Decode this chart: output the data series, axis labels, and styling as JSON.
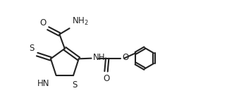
{
  "bg_color": "#ffffff",
  "line_color": "#222222",
  "line_width": 1.5,
  "font_size": 8.5,
  "font_color": "#222222",
  "figsize": [
    3.22,
    1.56
  ],
  "dpi": 100,
  "xlim": [
    0,
    9.5
  ],
  "ylim": [
    0,
    4.5
  ]
}
